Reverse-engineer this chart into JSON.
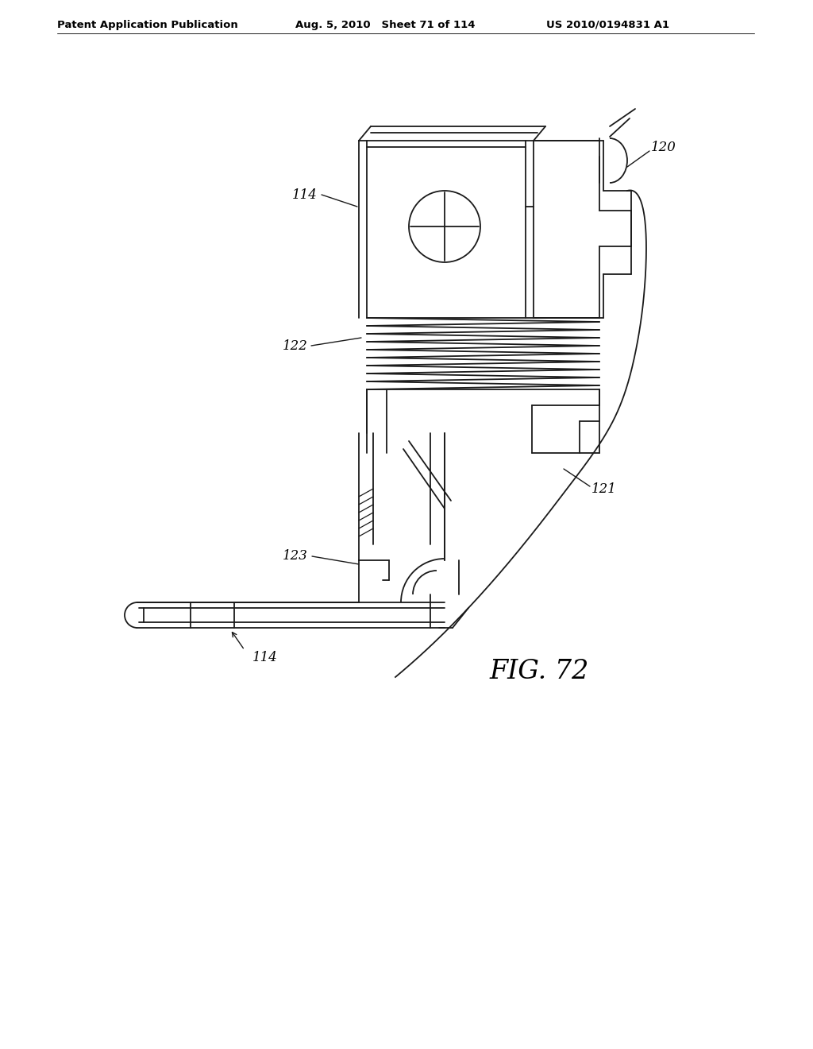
{
  "header_left": "Patent Application Publication",
  "header_mid": "Aug. 5, 2010   Sheet 71 of 114",
  "header_right": "US 2010/0194831 A1",
  "fig_label": "FIG. 72",
  "label_114_top": "114",
  "label_122": "122",
  "label_120": "120",
  "label_121": "121",
  "label_123": "123",
  "label_114_bot": "114",
  "bg_color": "#ffffff",
  "line_color": "#1a1a1a",
  "lw": 1.3
}
